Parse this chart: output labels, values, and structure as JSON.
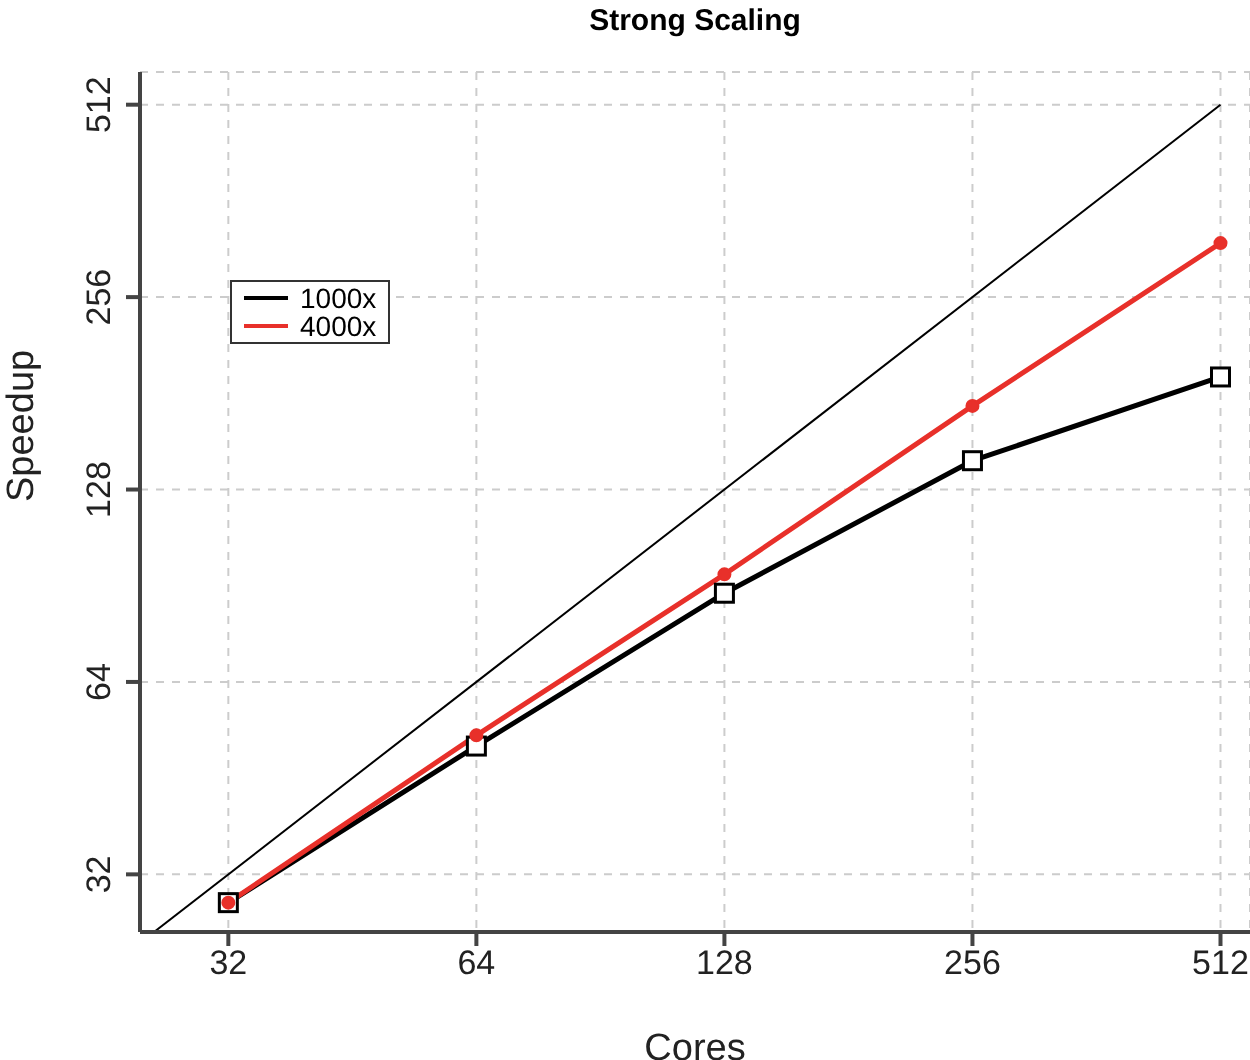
{
  "chart_data": {
    "type": "line",
    "title": "Strong Scaling",
    "xlabel": "Cores",
    "ylabel": "Speedup",
    "log": "xy",
    "grid": true,
    "legend": "top left",
    "line_style": "solid",
    "xlim": [
      25,
      556
    ],
    "xticks": [
      32,
      64,
      128,
      256,
      512
    ],
    "ylim": [
      26,
      576
    ],
    "yticks": [
      32,
      64,
      128,
      256,
      512
    ],
    "series": [
      {
        "type": "line",
        "color": "#000000",
        "x": [
          26,
          512
        ],
        "values": [
          26,
          512
        ],
        "marker": "none"
      },
      {
        "name": "1000x",
        "color": "#000000",
        "x": [
          32,
          64,
          128,
          256,
          512
        ],
        "values": [
          28.9,
          50.8,
          88.1,
          142,
          192
        ],
        "marker": "square"
      },
      {
        "name": "4000x",
        "color": "#e8302a",
        "x": [
          32,
          64,
          128,
          256,
          512
        ],
        "values": [
          28.9,
          52.8,
          94.3,
          173,
          311
        ],
        "marker": "circle"
      }
    ]
  }
}
